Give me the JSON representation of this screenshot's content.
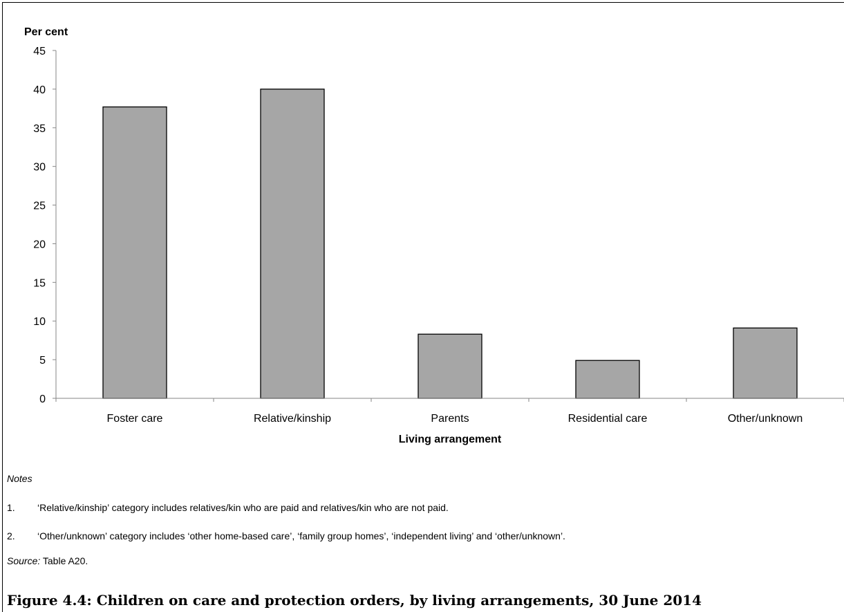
{
  "chart_data": {
    "type": "bar",
    "categories": [
      "Foster care",
      "Relative/kinship",
      "Parents",
      "Residential care",
      "Other/unknown"
    ],
    "values": [
      37.7,
      40.0,
      8.3,
      4.9,
      9.1
    ],
    "ylabel": "Per cent",
    "xlabel": "Living arrangement",
    "ylim": [
      0,
      45
    ],
    "yticks": [
      0,
      5,
      10,
      15,
      20,
      25,
      30,
      35,
      40,
      45
    ],
    "bar_color": "#a6a6a6",
    "grid": false,
    "legend": "none"
  },
  "notes": {
    "heading": "Notes",
    "items": [
      {
        "num": "1.",
        "text": "‘Relative/kinship’ category includes relatives/kin who are paid and relatives/kin who are not paid."
      },
      {
        "num": "2.",
        "text": "‘Other/unknown’ category includes ‘other home-based care’, ‘family group homes’, ‘independent living’ and ‘other/unknown’."
      }
    ],
    "source_label": "Source:",
    "source_text": " Table A20."
  },
  "figure_title": "Figure 4.4: Children on care and protection orders, by living arrangements, 30 June 2014"
}
